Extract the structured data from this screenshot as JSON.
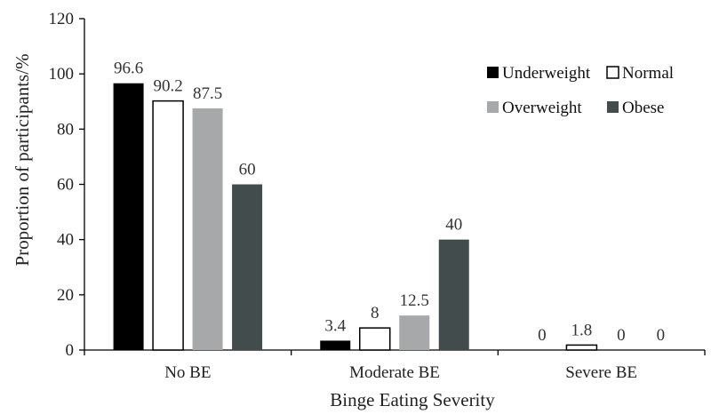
{
  "chart_data": {
    "type": "bar",
    "xlabel": "Binge Eating Severity",
    "ylabel": "Proportion of participants/%",
    "ylim": [
      0,
      120
    ],
    "yticks": [
      0,
      20,
      40,
      60,
      80,
      100,
      120
    ],
    "categories": [
      "No BE",
      "Moderate BE",
      "Severe BE"
    ],
    "series": [
      {
        "name": "Underweight",
        "values": [
          96.6,
          3.4,
          0
        ],
        "labels": [
          "96.6",
          "3.4",
          "0"
        ],
        "color": "#000000"
      },
      {
        "name": "Normal",
        "values": [
          90.2,
          8,
          1.8
        ],
        "labels": [
          "90.2",
          "8",
          "1.8"
        ],
        "color": "#ffffff"
      },
      {
        "name": "Overweight",
        "values": [
          87.5,
          12.5,
          0
        ],
        "labels": [
          "87.5",
          "12.5",
          "0"
        ],
        "color": "#a6a8aa"
      },
      {
        "name": "Obese",
        "values": [
          60,
          40,
          0
        ],
        "labels": [
          "60",
          "40",
          "0"
        ],
        "color": "#434c4d"
      }
    ],
    "legend_position": "top-right",
    "grid": false
  }
}
